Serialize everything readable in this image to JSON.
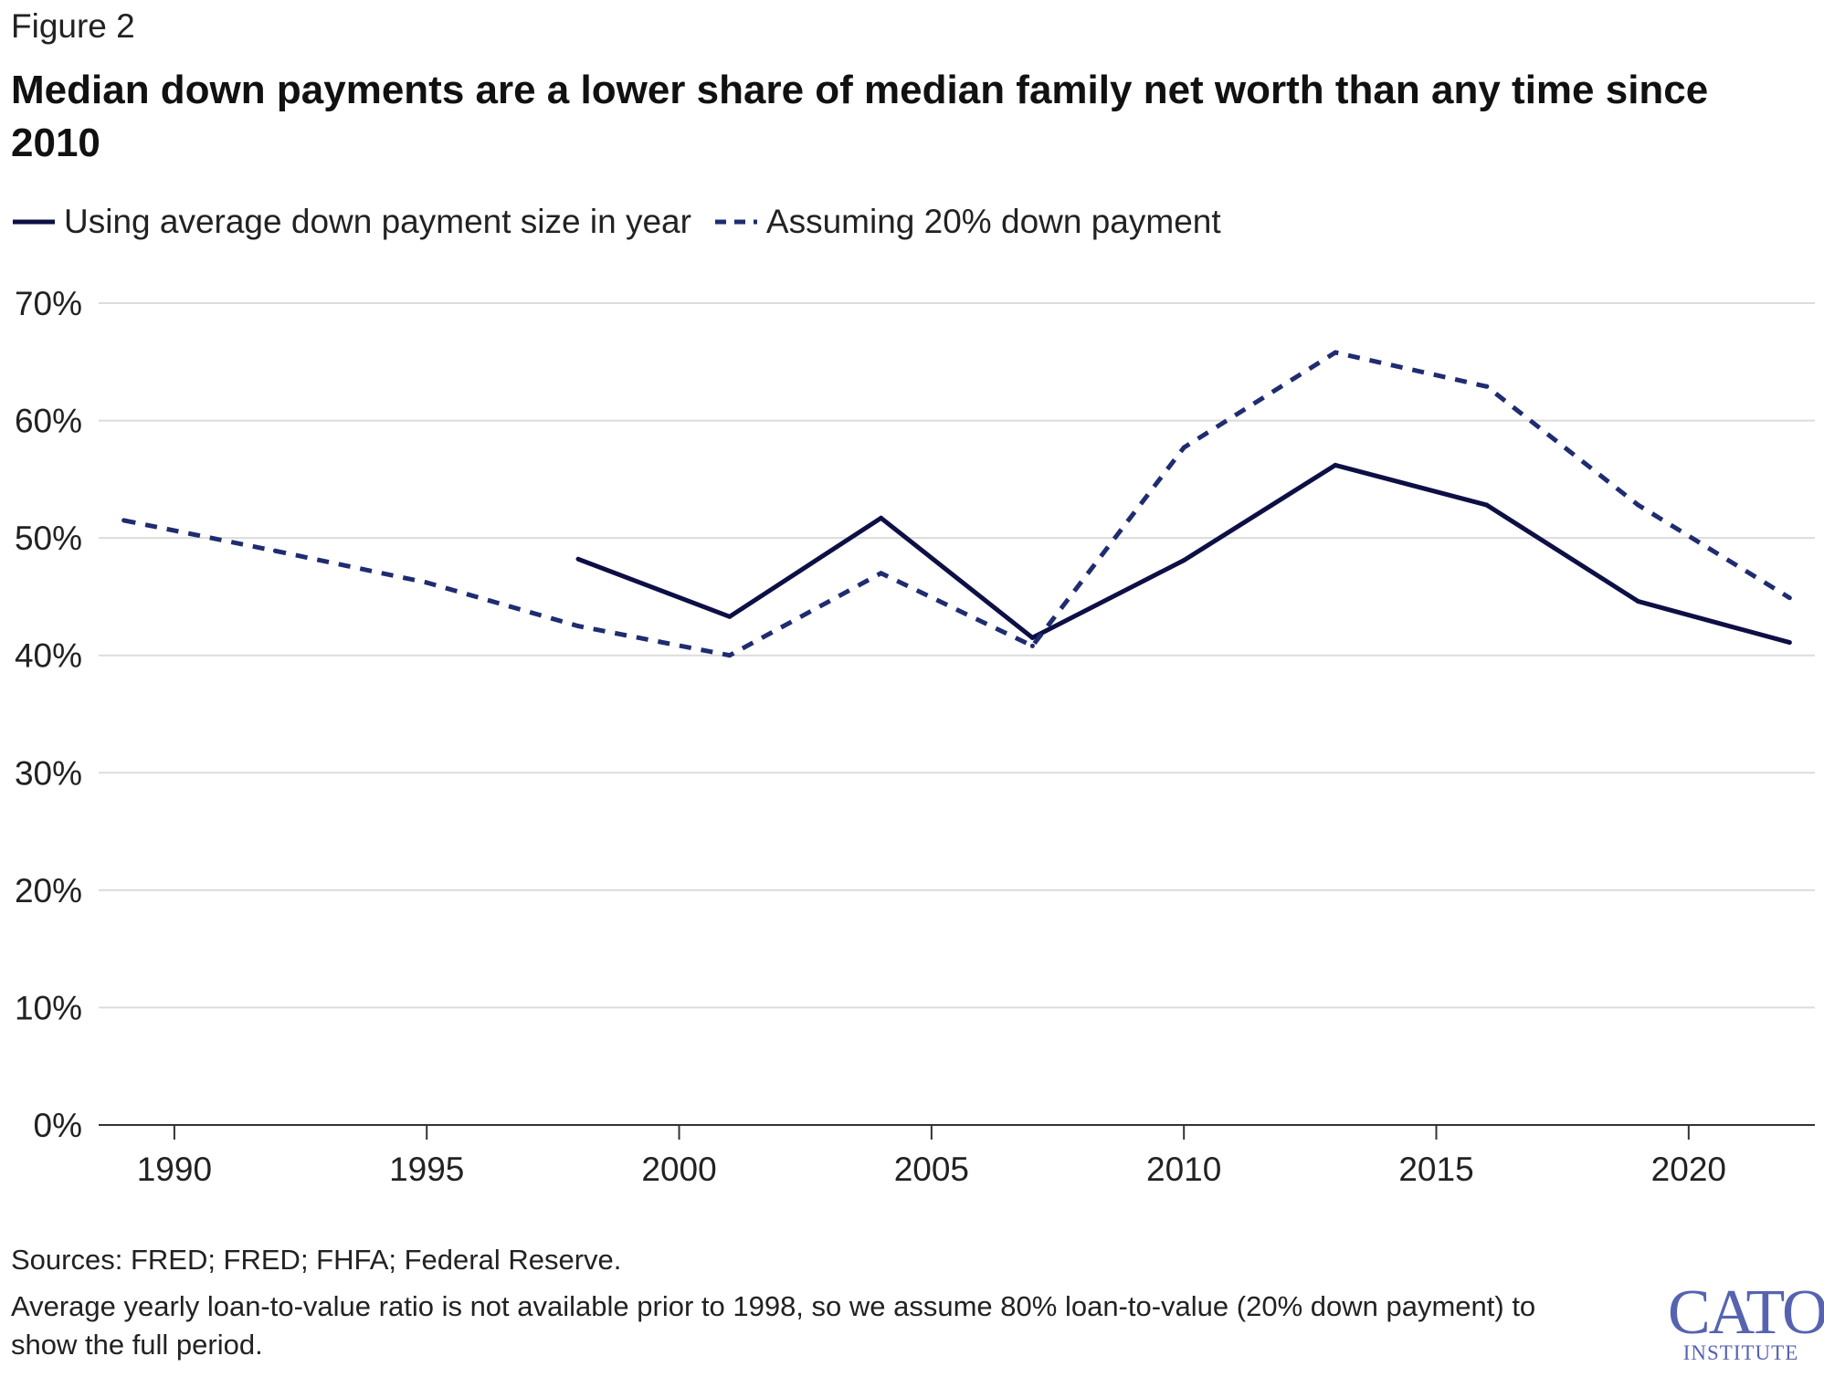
{
  "figure_label": "Figure 2",
  "title": "Median down payments are a lower share of median family net worth than any time since 2010",
  "sources": "Sources: FRED; FRED; FHFA; Federal Reserve.",
  "note": "Average yearly loan-to-value ratio is not available prior to 1998, so we assume 80% loan-to-value (20% down payment) to show the full period.",
  "logo": {
    "main": "CATO",
    "sub": "INSTITUTE"
  },
  "colors": {
    "line": "#0d0f45",
    "dashed": "#1f2c70",
    "grid": "#dcdcdc",
    "axis": "#333333",
    "logo": "#5663b0"
  },
  "chart_data": {
    "type": "line",
    "title": "Median down payments are a lower share of median family net worth than any time since 2010",
    "xlabel": "",
    "ylabel": "",
    "ylim": [
      0,
      70
    ],
    "xlim": [
      1988.5,
      2022.5
    ],
    "y_ticks": [
      0,
      10,
      20,
      30,
      40,
      50,
      60,
      70
    ],
    "y_tick_labels": [
      "0%",
      "10%",
      "20%",
      "30%",
      "40%",
      "50%",
      "60%",
      "70%"
    ],
    "x_ticks": [
      1990,
      1995,
      2000,
      2005,
      2010,
      2015,
      2020
    ],
    "x_tick_labels": [
      "1990",
      "1995",
      "2000",
      "2005",
      "2010",
      "2015",
      "2020"
    ],
    "grid": "horizontal",
    "legend_position": "top-left",
    "series": [
      {
        "name": "Using average down payment size in year",
        "style": "solid",
        "color": "#0d0f45",
        "x": [
          1998,
          2001,
          2004,
          2007,
          2010,
          2013,
          2016,
          2019,
          2022
        ],
        "values": [
          48.2,
          43.3,
          51.7,
          41.5,
          48.1,
          56.2,
          52.8,
          44.6,
          41.1
        ]
      },
      {
        "name": "Assuming 20% down payment",
        "style": "dashed",
        "color": "#1f2c70",
        "x": [
          1989,
          1992,
          1995,
          1998,
          2001,
          2004,
          2007,
          2010,
          2013,
          2016,
          2019,
          2022
        ],
        "values": [
          51.5,
          48.9,
          46.2,
          42.5,
          40.0,
          47.0,
          40.8,
          57.7,
          65.8,
          62.9,
          52.8,
          44.9
        ]
      }
    ]
  }
}
